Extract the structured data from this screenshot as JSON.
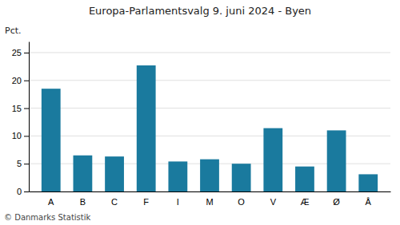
{
  "chart_data": {
    "type": "bar",
    "title": "Europa-Parlamentsvalg 9. juni 2024 - Byen",
    "ylabel": "Pct.",
    "footer": "© Danmarks Statistik",
    "categories": [
      "A",
      "B",
      "C",
      "F",
      "I",
      "M",
      "O",
      "V",
      "Æ",
      "Ø",
      "Å"
    ],
    "values": [
      18.5,
      6.5,
      6.3,
      22.7,
      5.4,
      5.8,
      5.0,
      11.4,
      4.5,
      11.0,
      3.1
    ],
    "color": "#1a7a9e",
    "ylim": [
      0,
      27
    ],
    "yticks": [
      0,
      5,
      10,
      15,
      20,
      25
    ],
    "grid": true
  }
}
